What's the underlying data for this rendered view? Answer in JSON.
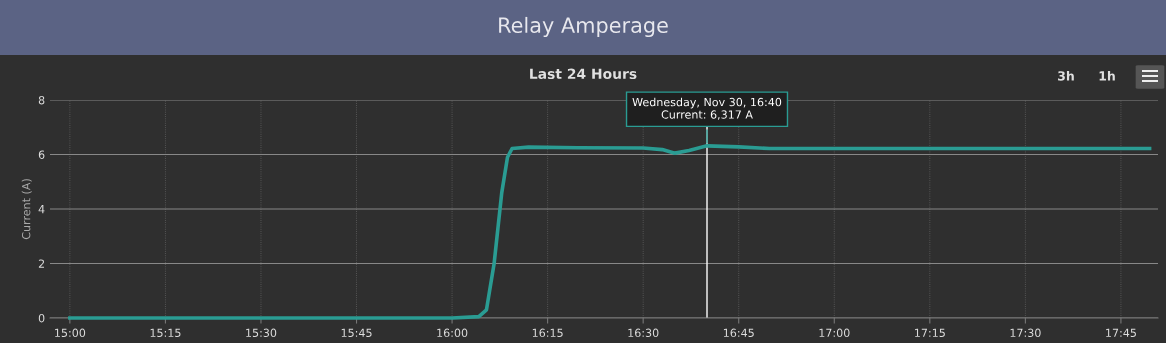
{
  "chart_data": {
    "type": "line",
    "title": "Relay Amperage",
    "subtitle": "Last 24 Hours",
    "ylabel": "Current (A)",
    "x": [
      15.0,
      16.0,
      16.07,
      16.09,
      16.11,
      16.13,
      16.145,
      16.157,
      16.2,
      16.33,
      16.5,
      16.55,
      16.583,
      16.62,
      16.667,
      16.75,
      16.83,
      17.0,
      17.5,
      17.825
    ],
    "series": [
      {
        "color": "#2a9c93",
        "values": [
          0,
          0,
          0.05,
          0.3,
          2.0,
          4.6,
          5.9,
          6.22,
          6.27,
          6.25,
          6.24,
          6.18,
          6.05,
          6.15,
          6.317,
          6.28,
          6.22,
          6.22,
          6.22,
          6.22
        ]
      }
    ],
    "xlim": [
      14.948,
      17.847
    ],
    "ylim": [
      0,
      8
    ],
    "xticks": [
      {
        "value": 15.0,
        "label": "15:00"
      },
      {
        "value": 15.25,
        "label": "15:15"
      },
      {
        "value": 15.5,
        "label": "15:30"
      },
      {
        "value": 15.75,
        "label": "15:45"
      },
      {
        "value": 16.0,
        "label": "16:00"
      },
      {
        "value": 16.25,
        "label": "16:15"
      },
      {
        "value": 16.5,
        "label": "16:30"
      },
      {
        "value": 16.75,
        "label": "16:45"
      },
      {
        "value": 17.0,
        "label": "17:00"
      },
      {
        "value": 17.25,
        "label": "17:15"
      },
      {
        "value": 17.5,
        "label": "17:30"
      },
      {
        "value": 17.75,
        "label": "17:45"
      }
    ],
    "yticks": [
      0,
      2,
      4,
      6,
      8
    ],
    "grid": true,
    "marker": "none",
    "line_style": "solid",
    "legend": false,
    "ref_lines": [
      {
        "axis": "x",
        "value": 16.667,
        "color": "#ffffff",
        "line_style": "solid"
      }
    ],
    "annotations": [
      {
        "text": "Wednesday, Nov 30, 16:40\nCurrent: 6,317 A",
        "x": 16.667,
        "y": 6.317
      },
      "3h",
      "1h"
    ]
  }
}
